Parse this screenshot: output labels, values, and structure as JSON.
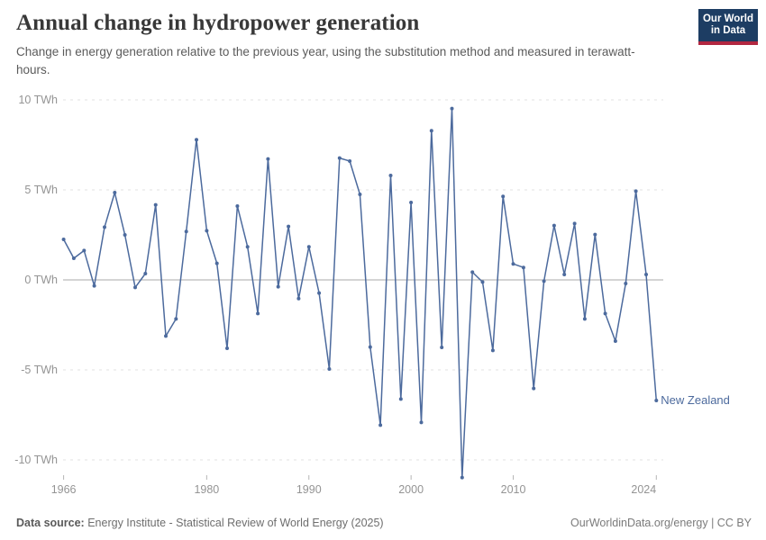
{
  "header": {
    "title": "Annual change in hydropower generation",
    "subtitle": "Change in energy generation relative to the previous year, using the substitution method and measured in terawatt-hours."
  },
  "logo": {
    "line1": "Our World",
    "line2": "in Data",
    "bg_color": "#1d3d63",
    "bar_color": "#b22741"
  },
  "chart_data": {
    "type": "line",
    "title": "Annual change in hydropower generation",
    "xlabel": "",
    "ylabel": "TWh",
    "series_name": "New Zealand",
    "unit_suffix": " TWh",
    "x_ticks": [
      1966,
      1980,
      1990,
      2000,
      2010,
      2024
    ],
    "y_ticks": [
      10,
      5,
      0,
      -5,
      -10
    ],
    "ylim": [
      -11.5,
      10
    ],
    "xlim": [
      1966,
      2024
    ],
    "grid": "dashed-horizontal",
    "legend_position": "end-of-line-label",
    "years": [
      1966,
      1967,
      1968,
      1969,
      1970,
      1971,
      1972,
      1973,
      1974,
      1975,
      1976,
      1977,
      1978,
      1979,
      1980,
      1981,
      1982,
      1983,
      1984,
      1985,
      1986,
      1987,
      1988,
      1989,
      1990,
      1991,
      1992,
      1993,
      1994,
      1995,
      1996,
      1997,
      1998,
      1999,
      2000,
      2001,
      2002,
      2003,
      2004,
      2005,
      2006,
      2007,
      2008,
      2009,
      2010,
      2011,
      2012,
      2013,
      2014,
      2015,
      2016,
      2017,
      2018,
      2019,
      2020,
      2021,
      2022,
      2023,
      2024
    ],
    "values": [
      2.25,
      1.2,
      1.63,
      -0.33,
      2.93,
      4.85,
      2.5,
      -0.42,
      0.35,
      4.17,
      -3.12,
      -2.17,
      2.69,
      7.79,
      2.73,
      0.92,
      -3.8,
      4.1,
      1.84,
      -1.87,
      6.72,
      -0.38,
      2.97,
      -1.04,
      1.84,
      -0.73,
      -4.95,
      6.77,
      6.6,
      4.75,
      -3.73,
      -8.07,
      5.8,
      -6.62,
      4.3,
      -7.92,
      8.29,
      -3.75,
      9.52,
      -10.98,
      0.43,
      -0.12,
      -3.92,
      4.64,
      0.89,
      0.69,
      -6.03,
      -0.07,
      3.02,
      0.3,
      3.13,
      -2.17,
      2.52,
      -1.87,
      -3.4,
      -0.2,
      4.93,
      0.3,
      -6.7
    ],
    "line_color": "#4c6a9d",
    "grid_color": "#e2e2e2",
    "zero_line_color": "#a8a8a8",
    "tick_label_color": "#949494"
  },
  "footer": {
    "source_label": "Data source:",
    "source_text": " Energy Institute - Statistical Review of World Energy (2025)",
    "license_text": "OurWorldinData.org/energy | CC BY"
  }
}
